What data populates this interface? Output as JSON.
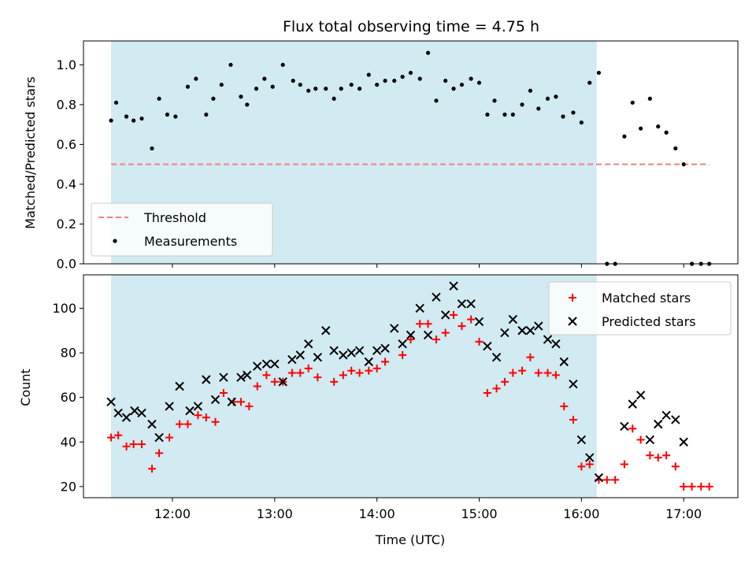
{
  "chart_data": {
    "type": "scatter",
    "title": "Flux total observing time = 4.75 h",
    "xlabel": "Time (UTC)",
    "x_tick_labels": [
      "12:00",
      "13:00",
      "14:00",
      "15:00",
      "16:00",
      "17:00"
    ],
    "x_tick_hours": [
      12,
      13,
      14,
      15,
      16,
      17
    ],
    "xlim": [
      11.13,
      17.53
    ],
    "shaded_interval": [
      11.4,
      16.15
    ],
    "shade_color": "#add8e6",
    "panels": [
      {
        "name": "ratio",
        "ylabel": "Matched/Predicted stars",
        "ylim": [
          0,
          1.12
        ],
        "y_ticks": [
          0.0,
          0.2,
          0.4,
          0.6,
          0.8,
          1.0
        ],
        "y_tick_labels": [
          "0.0",
          "0.2",
          "0.4",
          "0.6",
          "0.8",
          "1.0"
        ],
        "threshold": {
          "label": "Threshold",
          "value": 0.5,
          "x_range": [
            11.4,
            17.25
          ],
          "color": "#f08080"
        },
        "measurements_label": "Measurements",
        "measurements": [
          [
            11.4,
            0.72
          ],
          [
            11.45,
            0.81
          ],
          [
            11.55,
            0.74
          ],
          [
            11.62,
            0.72
          ],
          [
            11.7,
            0.73
          ],
          [
            11.8,
            0.58
          ],
          [
            11.87,
            0.83
          ],
          [
            11.95,
            0.75
          ],
          [
            12.03,
            0.74
          ],
          [
            12.15,
            0.89
          ],
          [
            12.23,
            0.93
          ],
          [
            12.33,
            0.75
          ],
          [
            12.4,
            0.83
          ],
          [
            12.48,
            0.9
          ],
          [
            12.57,
            1.0
          ],
          [
            12.67,
            0.84
          ],
          [
            12.73,
            0.8
          ],
          [
            12.82,
            0.88
          ],
          [
            12.9,
            0.93
          ],
          [
            12.98,
            0.89
          ],
          [
            13.08,
            1.0
          ],
          [
            13.18,
            0.92
          ],
          [
            13.25,
            0.9
          ],
          [
            13.33,
            0.87
          ],
          [
            13.4,
            0.88
          ],
          [
            13.5,
            0.88
          ],
          [
            13.58,
            0.83
          ],
          [
            13.65,
            0.88
          ],
          [
            13.75,
            0.9
          ],
          [
            13.83,
            0.88
          ],
          [
            13.92,
            0.95
          ],
          [
            14.0,
            0.9
          ],
          [
            14.08,
            0.92
          ],
          [
            14.17,
            0.92
          ],
          [
            14.25,
            0.94
          ],
          [
            14.33,
            0.96
          ],
          [
            14.42,
            0.93
          ],
          [
            14.5,
            1.06
          ],
          [
            14.58,
            0.82
          ],
          [
            14.67,
            0.92
          ],
          [
            14.75,
            0.88
          ],
          [
            14.83,
            0.9
          ],
          [
            14.92,
            0.93
          ],
          [
            15.0,
            0.91
          ],
          [
            15.08,
            0.75
          ],
          [
            15.15,
            0.82
          ],
          [
            15.25,
            0.75
          ],
          [
            15.33,
            0.75
          ],
          [
            15.42,
            0.8
          ],
          [
            15.5,
            0.87
          ],
          [
            15.58,
            0.78
          ],
          [
            15.67,
            0.83
          ],
          [
            15.75,
            0.84
          ],
          [
            15.82,
            0.74
          ],
          [
            15.92,
            0.76
          ],
          [
            16.0,
            0.71
          ],
          [
            16.08,
            0.91
          ],
          [
            16.17,
            0.96
          ],
          [
            16.25,
            0.0
          ],
          [
            16.33,
            0.0
          ],
          [
            16.42,
            0.64
          ],
          [
            16.5,
            0.81
          ],
          [
            16.58,
            0.68
          ],
          [
            16.67,
            0.83
          ],
          [
            16.75,
            0.69
          ],
          [
            16.83,
            0.66
          ],
          [
            16.92,
            0.58
          ],
          [
            17.0,
            0.5
          ],
          [
            17.08,
            0.0
          ],
          [
            17.17,
            0.0
          ],
          [
            17.25,
            0.0
          ]
        ]
      },
      {
        "name": "counts",
        "ylabel": "Count",
        "ylim": [
          15,
          115
        ],
        "y_ticks": [
          20,
          40,
          60,
          80,
          100
        ],
        "y_tick_labels": [
          "20",
          "40",
          "60",
          "80",
          "100"
        ],
        "series": [
          {
            "name": "Matched stars",
            "marker": "plus",
            "color": "#ff0000",
            "points": [
              [
                11.4,
                42
              ],
              [
                11.47,
                43
              ],
              [
                11.55,
                38
              ],
              [
                11.62,
                39
              ],
              [
                11.7,
                39
              ],
              [
                11.8,
                28
              ],
              [
                11.87,
                35
              ],
              [
                11.97,
                42
              ],
              [
                12.07,
                48
              ],
              [
                12.15,
                48
              ],
              [
                12.25,
                52
              ],
              [
                12.33,
                51
              ],
              [
                12.42,
                49
              ],
              [
                12.5,
                62
              ],
              [
                12.6,
                58
              ],
              [
                12.67,
                58
              ],
              [
                12.75,
                56
              ],
              [
                12.83,
                65
              ],
              [
                12.92,
                70
              ],
              [
                13.0,
                67
              ],
              [
                13.08,
                67
              ],
              [
                13.17,
                71
              ],
              [
                13.25,
                71
              ],
              [
                13.33,
                73
              ],
              [
                13.42,
                69
              ],
              [
                13.58,
                67
              ],
              [
                13.67,
                70
              ],
              [
                13.75,
                72
              ],
              [
                13.83,
                71
              ],
              [
                13.92,
                72
              ],
              [
                14.0,
                73
              ],
              [
                14.08,
                76
              ],
              [
                14.25,
                79
              ],
              [
                14.33,
                86
              ],
              [
                14.42,
                93
              ],
              [
                14.5,
                93
              ],
              [
                14.58,
                86
              ],
              [
                14.67,
                89
              ],
              [
                14.75,
                97
              ],
              [
                14.83,
                92
              ],
              [
                14.92,
                95
              ],
              [
                15.0,
                85
              ],
              [
                15.08,
                62
              ],
              [
                15.17,
                64
              ],
              [
                15.25,
                67
              ],
              [
                15.33,
                71
              ],
              [
                15.42,
                72
              ],
              [
                15.5,
                78
              ],
              [
                15.58,
                71
              ],
              [
                15.67,
                71
              ],
              [
                15.75,
                70
              ],
              [
                15.83,
                56
              ],
              [
                15.92,
                50
              ],
              [
                16.0,
                29
              ],
              [
                16.08,
                30
              ],
              [
                16.17,
                23
              ],
              [
                16.25,
                23
              ],
              [
                16.33,
                23
              ],
              [
                16.42,
                30
              ],
              [
                16.5,
                46
              ],
              [
                16.58,
                41
              ],
              [
                16.67,
                34
              ],
              [
                16.75,
                33
              ],
              [
                16.83,
                34
              ],
              [
                16.92,
                29
              ],
              [
                17.0,
                20
              ],
              [
                17.08,
                20
              ],
              [
                17.17,
                20
              ],
              [
                17.25,
                20
              ]
            ]
          },
          {
            "name": "Predicted stars",
            "marker": "x",
            "color": "#000000",
            "points": [
              [
                11.4,
                58
              ],
              [
                11.47,
                53
              ],
              [
                11.55,
                51
              ],
              [
                11.63,
                54
              ],
              [
                11.7,
                53
              ],
              [
                11.8,
                48
              ],
              [
                11.87,
                42
              ],
              [
                11.97,
                56
              ],
              [
                12.07,
                65
              ],
              [
                12.17,
                54
              ],
              [
                12.25,
                56
              ],
              [
                12.33,
                68
              ],
              [
                12.42,
                59
              ],
              [
                12.5,
                69
              ],
              [
                12.58,
                58
              ],
              [
                12.67,
                69
              ],
              [
                12.73,
                70
              ],
              [
                12.83,
                74
              ],
              [
                12.92,
                75
              ],
              [
                13.0,
                75
              ],
              [
                13.08,
                67
              ],
              [
                13.17,
                77
              ],
              [
                13.25,
                79
              ],
              [
                13.33,
                84
              ],
              [
                13.42,
                78
              ],
              [
                13.5,
                90
              ],
              [
                13.58,
                81
              ],
              [
                13.67,
                79
              ],
              [
                13.75,
                80
              ],
              [
                13.83,
                81
              ],
              [
                13.92,
                76
              ],
              [
                14.0,
                81
              ],
              [
                14.08,
                82
              ],
              [
                14.17,
                91
              ],
              [
                14.25,
                84
              ],
              [
                14.33,
                88
              ],
              [
                14.42,
                100
              ],
              [
                14.5,
                88
              ],
              [
                14.58,
                105
              ],
              [
                14.67,
                97
              ],
              [
                14.75,
                110
              ],
              [
                14.83,
                102
              ],
              [
                14.92,
                102
              ],
              [
                15.0,
                94
              ],
              [
                15.08,
                83
              ],
              [
                15.17,
                78
              ],
              [
                15.25,
                89
              ],
              [
                15.33,
                95
              ],
              [
                15.42,
                90
              ],
              [
                15.5,
                90
              ],
              [
                15.58,
                92
              ],
              [
                15.67,
                86
              ],
              [
                15.75,
                84
              ],
              [
                15.83,
                76
              ],
              [
                15.92,
                66
              ],
              [
                16.0,
                41
              ],
              [
                16.08,
                33
              ],
              [
                16.17,
                24
              ],
              [
                16.42,
                47
              ],
              [
                16.5,
                57
              ],
              [
                16.58,
                61
              ],
              [
                16.67,
                41
              ],
              [
                16.75,
                48
              ],
              [
                16.83,
                52
              ],
              [
                16.92,
                50
              ],
              [
                17.0,
                40
              ]
            ]
          }
        ]
      }
    ]
  }
}
